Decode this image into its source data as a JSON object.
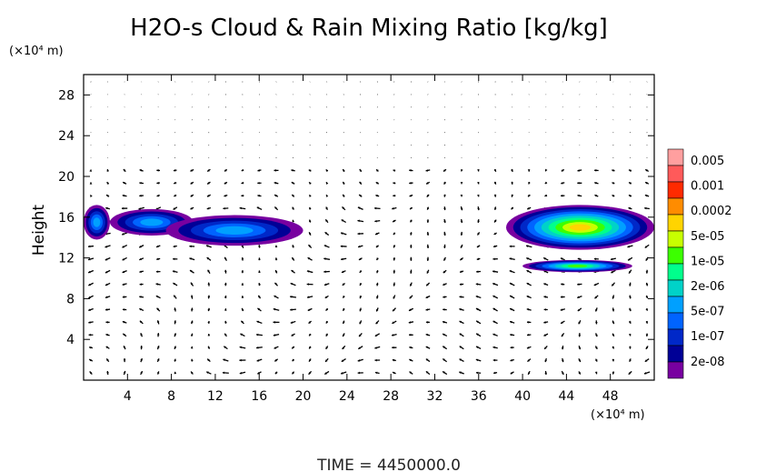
{
  "chart_data": {
    "type": "heatmap",
    "title": "H2O-s Cloud & Rain Mixing Ratio [kg/kg]",
    "ylabel": "Height",
    "y_unit": "(×10⁴ m)",
    "x_unit": "(×10⁴ m)",
    "xlim": [
      0,
      52
    ],
    "ylim": [
      0,
      30
    ],
    "x_ticks": [
      4,
      8,
      12,
      16,
      20,
      24,
      28,
      32,
      36,
      40,
      44,
      48
    ],
    "y_ticks": [
      4,
      8,
      12,
      16,
      20,
      24,
      28
    ],
    "x_tick_labels": [
      "4",
      "8",
      "12",
      "16",
      "20",
      "24",
      "28",
      "32",
      "36",
      "40",
      "44",
      "48"
    ],
    "y_tick_labels": [
      "4",
      "8",
      "12",
      "16",
      "20",
      "24",
      "28"
    ],
    "colorbar": {
      "levels": [
        "0.005",
        "0.001",
        "0.0002",
        "5e-05",
        "1e-05",
        "2e-06",
        "5e-07",
        "1e-07",
        "2e-08"
      ],
      "colors": [
        "#ff9f9f",
        "#ff5a5a",
        "#ff2a00",
        "#ff8c00",
        "#ffd400",
        "#c8ff00",
        "#3cff00",
        "#00ff8c",
        "#00d2c8",
        "#00a0ff",
        "#0064ff",
        "#0028c8",
        "#000096",
        "#7800a0"
      ]
    },
    "cloud_regions": [
      {
        "x": [
          0,
          2.4
        ],
        "y": [
          13.8,
          17.2
        ],
        "max_level": "5e-07"
      },
      {
        "x": [
          2.4,
          10
        ],
        "y": [
          14.2,
          16.8
        ],
        "max_level": "5e-07"
      },
      {
        "x": [
          7.5,
          20
        ],
        "y": [
          13.2,
          16.2
        ],
        "max_level": "5e-07"
      },
      {
        "x": [
          38.5,
          52
        ],
        "y": [
          12.8,
          17.2
        ],
        "max_level": "5e-06"
      },
      {
        "x": [
          40,
          50
        ],
        "y": [
          10.6,
          11.8
        ],
        "max_level": "5e-05"
      }
    ],
    "wind_field": "velocity vectors overlaid on a regular grid"
  },
  "time_label": "TIME  =  4450000.0"
}
